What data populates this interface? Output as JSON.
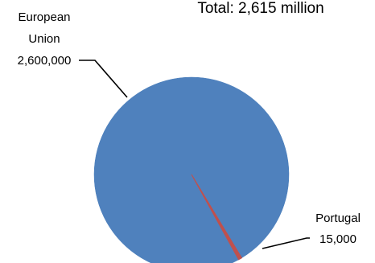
{
  "chart_data": {
    "type": "pie",
    "title": "Total: 2,615 million",
    "slices": [
      {
        "label_lines": [
          "European",
          "Union"
        ],
        "value": 2600000,
        "value_label": "2,600,000",
        "color": "#4F81BD"
      },
      {
        "label_lines": [
          "Portugal"
        ],
        "value": 15000,
        "value_label": "15,000",
        "color": "#C0504D"
      }
    ],
    "legend": "none"
  }
}
